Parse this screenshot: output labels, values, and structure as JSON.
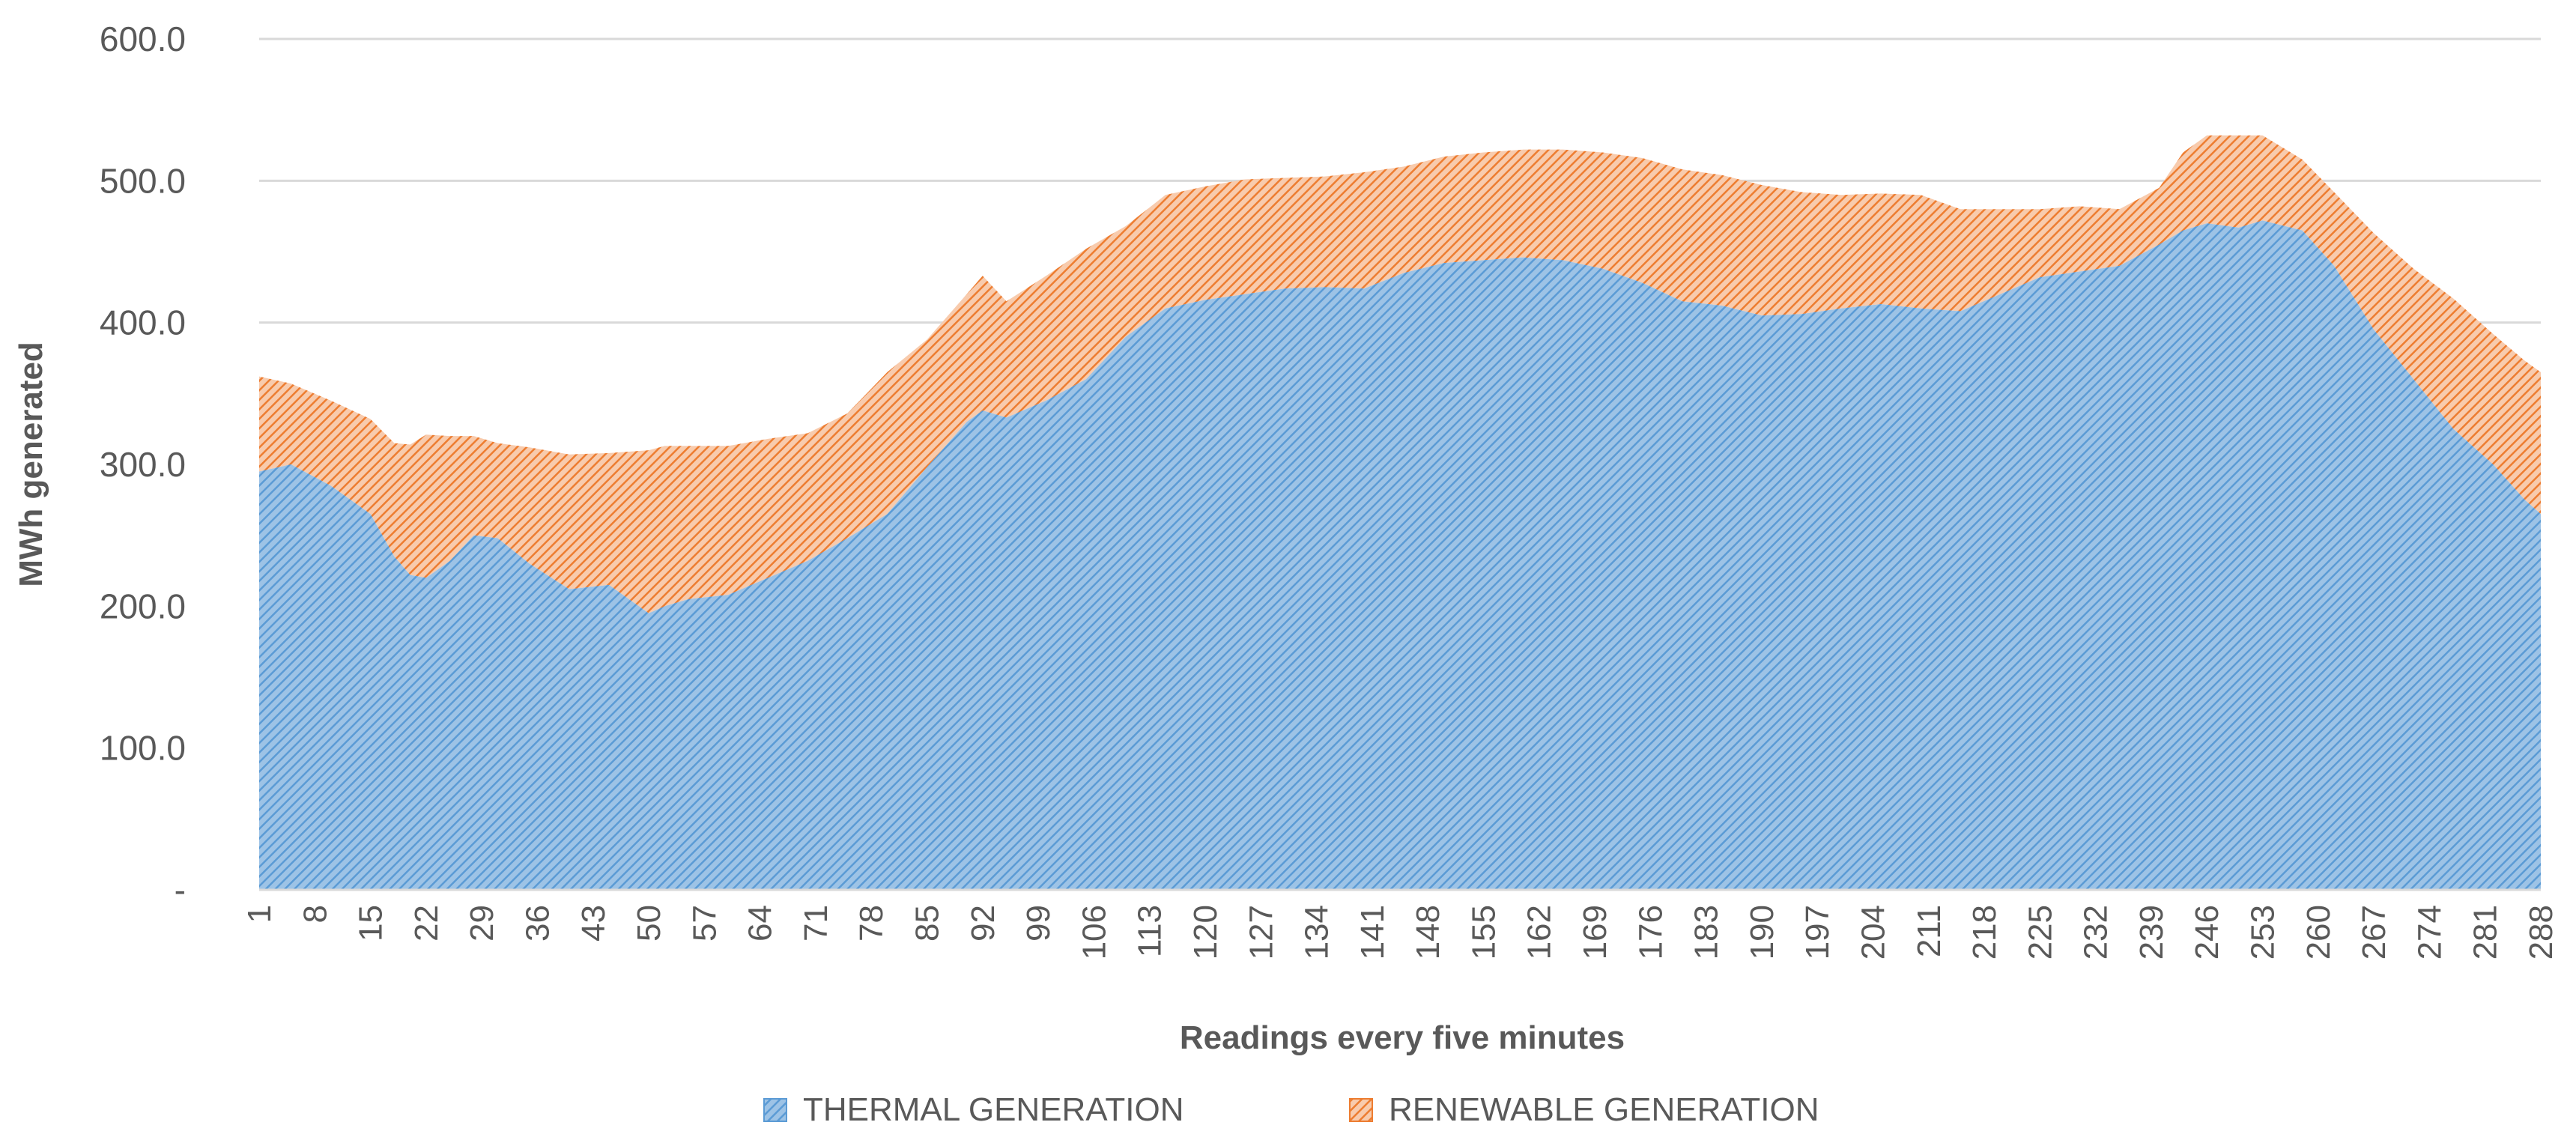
{
  "chart_data": {
    "type": "area",
    "stacked": true,
    "title": "",
    "xlabel": "Readings every five minutes",
    "ylabel": "MWh generated",
    "ylim": [
      0,
      600
    ],
    "yticks": [
      0,
      100,
      200,
      300,
      400,
      500,
      600
    ],
    "ytick_labels": [
      "-",
      "100.0",
      "200.0",
      "300.0",
      "400.0",
      "500.0",
      "600.0"
    ],
    "x_range": [
      1,
      288
    ],
    "xtick_labels": [
      "1",
      "8",
      "15",
      "22",
      "29",
      "36",
      "43",
      "50",
      "57",
      "64",
      "71",
      "78",
      "85",
      "92",
      "99",
      "106",
      "113",
      "120",
      "127",
      "134",
      "141",
      "148",
      "155",
      "162",
      "169",
      "176",
      "183",
      "190",
      "197",
      "204",
      "211",
      "218",
      "225",
      "232",
      "239",
      "246",
      "253",
      "260",
      "267",
      "274",
      "281",
      "288"
    ],
    "grid": true,
    "legend_position": "bottom",
    "colors": {
      "thermal": "#5b9bd5",
      "renewable": "#ed7d31",
      "grid": "#d9d9d9",
      "text": "#595959"
    },
    "x": [
      1,
      5,
      10,
      15,
      18,
      20,
      22,
      25,
      28,
      31,
      35,
      40,
      45,
      50,
      52,
      55,
      60,
      65,
      70,
      75,
      80,
      85,
      90,
      92,
      95,
      100,
      105,
      110,
      115,
      120,
      125,
      130,
      135,
      140,
      145,
      150,
      155,
      160,
      165,
      170,
      175,
      180,
      185,
      190,
      195,
      200,
      205,
      210,
      215,
      220,
      225,
      230,
      235,
      240,
      243,
      246,
      250,
      253,
      258,
      262,
      267,
      272,
      277,
      282,
      286,
      288
    ],
    "series": [
      {
        "name": "THERMAL GENERATION",
        "values": [
          295,
          300,
          285,
          265,
          235,
          222,
          220,
          232,
          250,
          248,
          230,
          212,
          215,
          195,
          200,
          205,
          208,
          220,
          232,
          248,
          265,
          298,
          330,
          338,
          333,
          345,
          360,
          390,
          410,
          416,
          420,
          424,
          425,
          424,
          435,
          442,
          444,
          446,
          444,
          438,
          428,
          415,
          412,
          405,
          406,
          410,
          413,
          410,
          408,
          420,
          432,
          436,
          440,
          455,
          465,
          470,
          467,
          472,
          465,
          440,
          395,
          360,
          325,
          300,
          275,
          265
        ]
      },
      {
        "name": "RENEWABLE GENERATION",
        "values": [
          67,
          57,
          60,
          67,
          80,
          92,
          101,
          88,
          70,
          67,
          82,
          95,
          93,
          115,
          113,
          108,
          105,
          98,
          90,
          88,
          100,
          90,
          90,
          95,
          82,
          88,
          92,
          78,
          80,
          80,
          81,
          78,
          78,
          82,
          75,
          75,
          76,
          76,
          78,
          82,
          88,
          93,
          92,
          92,
          86,
          80,
          78,
          80,
          72,
          60,
          48,
          46,
          40,
          40,
          55,
          62,
          65,
          60,
          50,
          52,
          68,
          78,
          92,
          92,
          98,
          100
        ]
      }
    ]
  }
}
